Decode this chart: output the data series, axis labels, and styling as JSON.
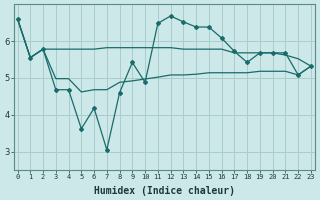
{
  "xlabel": "Humidex (Indice chaleur)",
  "background_color": "#cce8e8",
  "grid_color": "#aacccc",
  "line_color": "#1a6b6b",
  "x_ticks": [
    0,
    1,
    2,
    3,
    4,
    5,
    6,
    7,
    8,
    9,
    10,
    11,
    12,
    13,
    14,
    15,
    16,
    17,
    18,
    19,
    20,
    21,
    22,
    23
  ],
  "y_ticks": [
    3,
    4,
    5,
    6
  ],
  "ylim": [
    2.5,
    7.0
  ],
  "xlim": [
    -0.3,
    23.3
  ],
  "line_upper_x": [
    0,
    1,
    2,
    3,
    4,
    5,
    6,
    7,
    8,
    9,
    10,
    11,
    12,
    13,
    14,
    15,
    16,
    17,
    18,
    19,
    20,
    21,
    22,
    23
  ],
  "line_upper_y": [
    6.6,
    5.55,
    5.78,
    5.78,
    5.78,
    5.78,
    5.78,
    5.82,
    5.82,
    5.82,
    5.82,
    5.82,
    5.82,
    5.78,
    5.78,
    5.78,
    5.78,
    5.68,
    5.68,
    5.68,
    5.68,
    5.62,
    5.52,
    5.32
  ],
  "line_volatile_x": [
    0,
    1,
    2,
    3,
    4,
    5,
    6,
    7,
    8,
    9,
    10,
    11,
    12,
    13,
    14,
    15,
    16,
    17,
    18,
    19,
    20,
    21,
    22,
    23
  ],
  "line_volatile_y": [
    6.6,
    5.55,
    5.78,
    4.68,
    4.68,
    3.62,
    4.18,
    3.05,
    4.6,
    5.42,
    4.88,
    6.48,
    6.68,
    6.52,
    6.38,
    6.38,
    6.08,
    5.72,
    5.42,
    5.68,
    5.68,
    5.68,
    5.08,
    5.32
  ],
  "line_lower_x": [
    0,
    1,
    2,
    3,
    4,
    5,
    6,
    7,
    8,
    9,
    10,
    11,
    12,
    13,
    14,
    15,
    16,
    17,
    18,
    19,
    20,
    21,
    22,
    23
  ],
  "line_lower_y": [
    6.6,
    5.55,
    5.78,
    4.98,
    4.98,
    4.62,
    4.68,
    4.68,
    4.88,
    4.92,
    4.97,
    5.02,
    5.08,
    5.08,
    5.1,
    5.14,
    5.14,
    5.14,
    5.14,
    5.18,
    5.18,
    5.18,
    5.08,
    5.32
  ],
  "xlabel_fontsize": 7,
  "xlabel_fontweight": "bold",
  "tick_fontsize_x": 5,
  "tick_fontsize_y": 6
}
